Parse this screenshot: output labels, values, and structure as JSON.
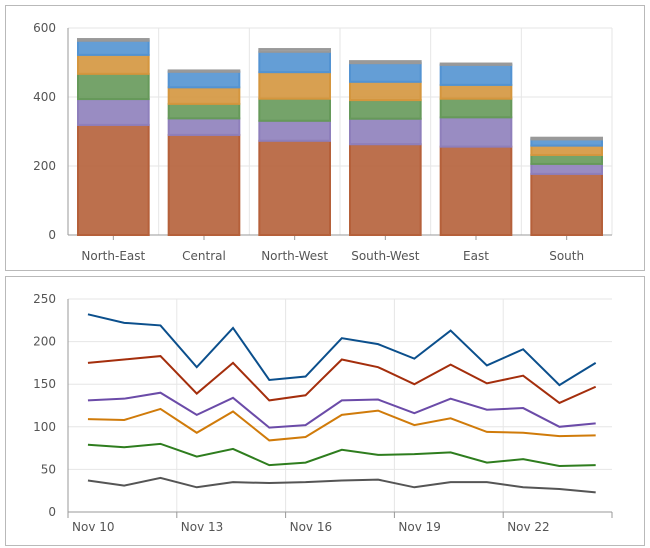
{
  "chart_data": [
    {
      "type": "bar",
      "stacked": true,
      "categories": [
        "North-East",
        "Central",
        "North-West",
        "South-West",
        "East",
        "South"
      ],
      "ylim": [
        0,
        600
      ],
      "yticks": [
        "0",
        "200",
        "400",
        "600"
      ],
      "grid": true,
      "series": [
        {
          "color": "#b5603a",
          "values": [
            319,
            290,
            273,
            263,
            256,
            177
          ]
        },
        {
          "color": "#8e7fbb",
          "values": [
            75,
            48,
            58,
            74,
            85,
            29
          ]
        },
        {
          "color": "#66995a",
          "values": [
            73,
            42,
            64,
            54,
            54,
            26
          ]
        },
        {
          "color": "#d4963e",
          "values": [
            55,
            48,
            77,
            53,
            40,
            27
          ]
        },
        {
          "color": "#5393d2",
          "values": [
            41,
            45,
            59,
            54,
            58,
            18
          ]
        },
        {
          "color": "#999999",
          "values": [
            5,
            4,
            8,
            6,
            4,
            5
          ]
        }
      ]
    },
    {
      "type": "line",
      "x": [
        "Nov 10",
        "Nov 11",
        "Nov 12",
        "Nov 13",
        "Nov 14",
        "Nov 15",
        "Nov 16",
        "Nov 17",
        "Nov 18",
        "Nov 19",
        "Nov 20",
        "Nov 21",
        "Nov 22",
        "Nov 23",
        "Nov 24"
      ],
      "xticks": [
        "Nov 10",
        "Nov 13",
        "Nov 16",
        "Nov 19",
        "Nov 22"
      ],
      "ylim": [
        0,
        250
      ],
      "yticks": [
        "0",
        "50",
        "100",
        "150",
        "200",
        "250"
      ],
      "grid": true,
      "series": [
        {
          "color": "#0b4f8c",
          "values": [
            232,
            222,
            219,
            170,
            216,
            155,
            159,
            204,
            197,
            180,
            213,
            172,
            191,
            149,
            175
          ]
        },
        {
          "color": "#a42e0c",
          "values": [
            175,
            179,
            183,
            139,
            175,
            131,
            137,
            179,
            170,
            150,
            173,
            151,
            160,
            128,
            147
          ]
        },
        {
          "color": "#6b4ba8",
          "values": [
            131,
            133,
            140,
            114,
            134,
            99,
            102,
            131,
            132,
            116,
            133,
            120,
            122,
            100,
            104
          ]
        },
        {
          "color": "#d07b0a",
          "values": [
            109,
            108,
            121,
            93,
            118,
            84,
            88,
            114,
            119,
            102,
            110,
            94,
            93,
            89,
            90
          ]
        },
        {
          "color": "#2e7d1e",
          "values": [
            79,
            76,
            80,
            65,
            74,
            55,
            58,
            73,
            67,
            68,
            70,
            58,
            62,
            54,
            55
          ]
        },
        {
          "color": "#555555",
          "values": [
            37,
            31,
            40,
            29,
            35,
            34,
            35,
            37,
            38,
            29,
            35,
            35,
            29,
            27,
            23
          ]
        }
      ]
    }
  ]
}
